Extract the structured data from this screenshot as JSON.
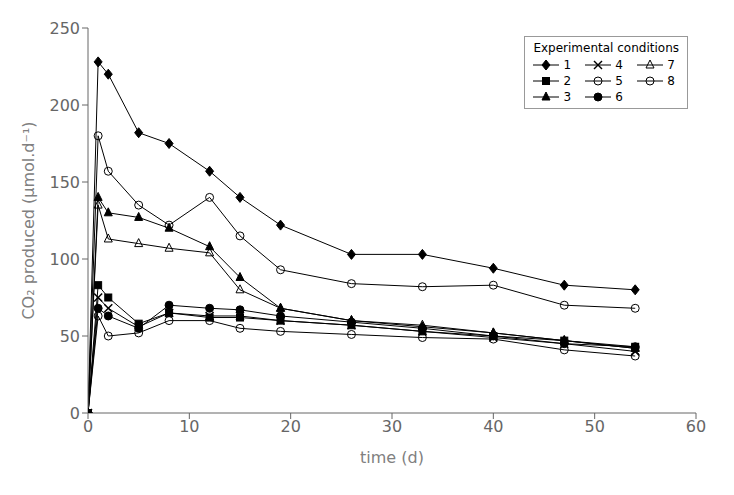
{
  "chart_data": {
    "type": "line",
    "xlabel": "time (d)",
    "ylabel": "CO₂ produced (µmol.d⁻¹)",
    "xlim": [
      0,
      60
    ],
    "ylim": [
      0,
      250
    ],
    "xticks": [
      0,
      10,
      20,
      30,
      40,
      50,
      60
    ],
    "yticks": [
      0,
      50,
      100,
      150,
      200,
      250
    ],
    "legend_title": "Experimental conditions",
    "legend": "upper right",
    "grid": false,
    "x": [
      0,
      1,
      2,
      5,
      8,
      12,
      15,
      19,
      26,
      33,
      40,
      47,
      54
    ],
    "series": [
      {
        "name": "1",
        "color": "#000000",
        "marker": "diamond",
        "values": [
          0,
          228,
          220,
          182,
          175,
          157,
          140,
          122,
          103,
          103,
          94,
          83,
          80
        ]
      },
      {
        "name": "2",
        "color": "#000000",
        "marker": "square",
        "values": [
          0,
          83,
          75,
          58,
          65,
          62,
          62,
          60,
          57,
          53,
          50,
          47,
          43
        ]
      },
      {
        "name": "3",
        "color": "#000000",
        "marker": "triangle",
        "values": [
          0,
          140,
          130,
          127,
          120,
          108,
          88,
          68,
          60,
          56,
          52,
          47,
          42
        ]
      },
      {
        "name": "4",
        "color": "#000000",
        "marker": "x",
        "values": [
          0,
          75,
          68,
          56,
          65,
          63,
          63,
          60,
          57,
          53,
          49,
          45,
          40
        ]
      },
      {
        "name": "5",
        "color": "#000000",
        "marker": "circle-open",
        "values": [
          0,
          180,
          157,
          135,
          122,
          140,
          115,
          93,
          84,
          82,
          83,
          70,
          68
        ]
      },
      {
        "name": "6",
        "color": "#000000",
        "marker": "circle",
        "values": [
          0,
          68,
          63,
          55,
          70,
          68,
          67,
          63,
          59,
          55,
          50,
          45,
          43
        ]
      },
      {
        "name": "7",
        "color": "#000000",
        "marker": "triangle-open",
        "values": [
          0,
          135,
          113,
          110,
          107,
          104,
          80,
          68,
          60,
          57,
          52,
          47,
          42
        ]
      },
      {
        "name": "8",
        "color": "#000000",
        "marker": "circle-open",
        "values": [
          0,
          63,
          50,
          52,
          60,
          60,
          55,
          53,
          51,
          49,
          48,
          41,
          37
        ]
      }
    ]
  }
}
